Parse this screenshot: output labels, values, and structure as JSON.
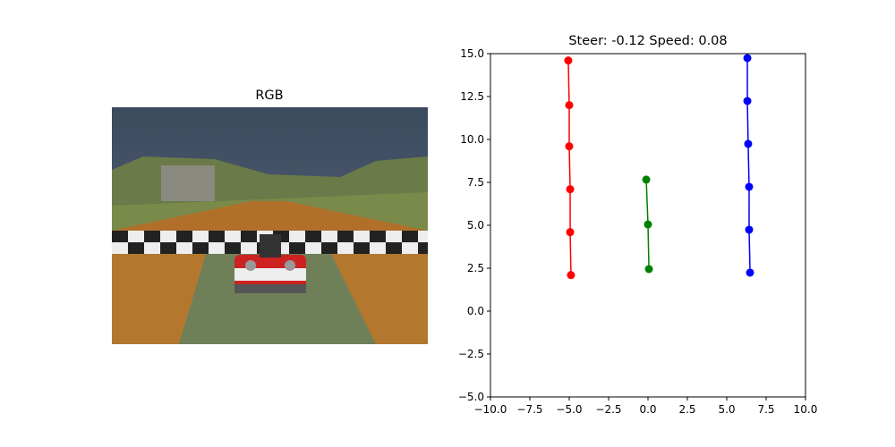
{
  "chart_data": [
    {
      "type": "image",
      "title": "RGB"
    },
    {
      "type": "line",
      "title": "Steer: -0.12 Speed: 0.08",
      "series": [
        {
          "color": "#ff0000",
          "x": [
            -5.06,
            -5.0,
            -5.0,
            -4.94,
            -4.94,
            -4.89
          ],
          "values": [
            14.6,
            12.0,
            9.6,
            7.1,
            4.6,
            2.1
          ]
        },
        {
          "color": "#0000ff",
          "x": [
            6.31,
            6.31,
            6.36,
            6.42,
            6.42,
            6.48
          ],
          "values": [
            14.74,
            12.24,
            9.74,
            7.24,
            4.74,
            2.24
          ]
        },
        {
          "color": "#008000",
          "x": [
            -0.11,
            0.0,
            0.06
          ],
          "values": [
            7.66,
            5.05,
            2.45
          ]
        }
      ],
      "xlim": [
        -10,
        10
      ],
      "ylim": [
        -5,
        15
      ],
      "xticks": [
        {
          "value": -10,
          "label": "−10.0"
        },
        {
          "value": -7.5,
          "label": "−7.5"
        },
        {
          "value": -5,
          "label": "−5.0"
        },
        {
          "value": -2.5,
          "label": "−2.5"
        },
        {
          "value": 0,
          "label": "0.0"
        },
        2.5,
        {
          "value": 5,
          "label": "5.0"
        },
        7.5,
        {
          "value": 10,
          "label": "10.0"
        }
      ],
      "yticks": [
        {
          "value": -5,
          "label": "−5.0"
        },
        {
          "value": -2.5,
          "label": "−2.5"
        },
        {
          "value": 0,
          "label": "0.0"
        },
        2.5,
        {
          "value": 5,
          "label": "5.0"
        },
        7.5,
        {
          "value": 10,
          "label": "10.0"
        },
        12.5,
        {
          "value": 15,
          "label": "15.0"
        }
      ]
    }
  ]
}
